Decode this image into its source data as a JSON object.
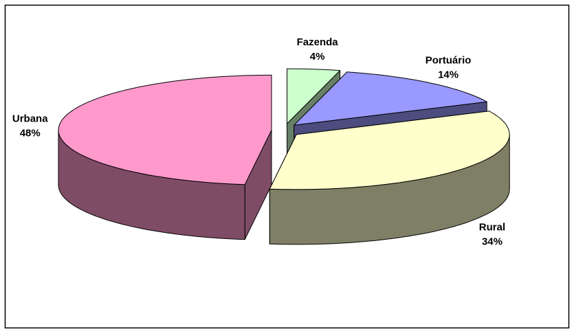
{
  "chart_data": {
    "type": "pie",
    "categories": [
      "Fazenda",
      "Portuário",
      "Rural",
      "Urbana"
    ],
    "values": [
      4,
      14,
      34,
      48
    ],
    "value_labels": [
      "4%",
      "14%",
      "34%",
      "48%"
    ],
    "colors": [
      "#ccffcc",
      "#9999ff",
      "#ffffcc",
      "#ff99cc"
    ],
    "three_d": true,
    "exploded": true
  }
}
